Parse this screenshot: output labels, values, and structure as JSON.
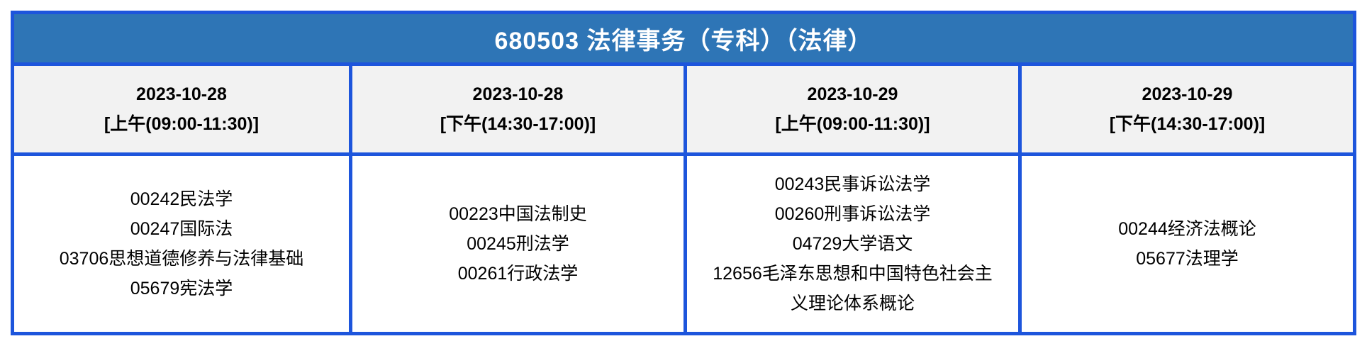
{
  "table": {
    "title": "680503 法律事务（专科）（法律）",
    "colors": {
      "title_bar_background": "#2e75b6",
      "grid_border": "#1d55dc",
      "header_row_background": "#f2f2f2",
      "title_text": "#ffffff",
      "body_text": "#000000"
    },
    "columns": [
      {
        "date": "2023-10-28",
        "session": "[上午(09:00-11:30)]",
        "courses": [
          "00242民法学",
          "00247国际法",
          "03706思想道德修养与法律基础",
          "05679宪法学"
        ]
      },
      {
        "date": "2023-10-28",
        "session": "[下午(14:30-17:00)]",
        "courses": [
          "00223中国法制史",
          "00245刑法学",
          "00261行政法学"
        ]
      },
      {
        "date": "2023-10-29",
        "session": "[上午(09:00-11:30)]",
        "courses": [
          "00243民事诉讼法学",
          "00260刑事诉讼法学",
          "04729大学语文",
          "12656毛泽东思想和中国特色社会主义理论体系概论"
        ]
      },
      {
        "date": "2023-10-29",
        "session": "[下午(14:30-17:00)]",
        "courses": [
          "00244经济法概论",
          "05677法理学"
        ]
      }
    ]
  }
}
